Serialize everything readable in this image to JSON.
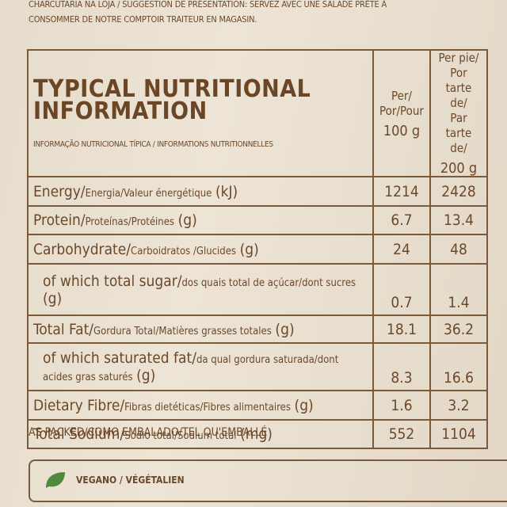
{
  "top_text": [
    "CHARCUTARIA NA LOJA / SUGGESTION DE PRÉSENTATION: SERVEZ AVEC UNE SALADE PRÊTE À",
    "CONSOMMER DE NOTRE COMPTOIR TRAITEUR EN MAGASIN."
  ],
  "header": {
    "title": "TYPICAL NUTRITIONAL INFORMATION",
    "subtitle": "INFORMAÇÃO NUTRICIONAL TÍPICA / INFORMATIONS NUTRITIONNELLES",
    "col1": [
      "Per/",
      "Por/Pour",
      "100 g"
    ],
    "col2": [
      "Per pie/",
      "Por tarte de/",
      "Par tarte de/",
      "200 g"
    ]
  },
  "rows": [
    {
      "name": "Energy/",
      "translations": "Energia/Valeur énergétique",
      "unit": "(kJ)",
      "per100": "1214",
      "per_pie": "2428"
    },
    {
      "name": "Protein/",
      "translations": "Proteínas/Protéines",
      "unit": "(g)",
      "per100": "6.7",
      "per_pie": "13.4"
    },
    {
      "name": "Carbohydrate/",
      "translations": "Carboidratos /Glucides",
      "unit": "(g)",
      "per100": "24",
      "per_pie": "48"
    },
    {
      "name": "of which total sugar/",
      "translations": "dos quais total de açúcar/dont sucres",
      "unit": "(g)",
      "per100": "0.7",
      "per_pie": "1.4",
      "sub": true
    },
    {
      "name": "Total Fat/",
      "translations": "Gordura Total/Matières grasses totales",
      "unit": "(g)",
      "per100": "18.1",
      "per_pie": "36.2"
    },
    {
      "name": "of which saturated fat/",
      "translations": "da qual gordura saturada/dont acides gras saturés",
      "unit": "(g)",
      "per100": "8.3",
      "per_pie": "16.6",
      "sub": true
    },
    {
      "name": "Dietary Fibre/",
      "translations": "Fibras dietéticas/Fibres alimentaires",
      "unit": "(g)",
      "per100": "1.6",
      "per_pie": "3.2"
    },
    {
      "name": "Total Sodium/",
      "translations": "Sódio total/Sodium total",
      "unit": "(mg)",
      "per100": "552",
      "per_pie": "1104"
    }
  ],
  "footer": "AS PACKED/COMO EMBALADO/TEL QU'EMBALLÉ",
  "badge": "VEGANO / VÉGÉTALIEN"
}
